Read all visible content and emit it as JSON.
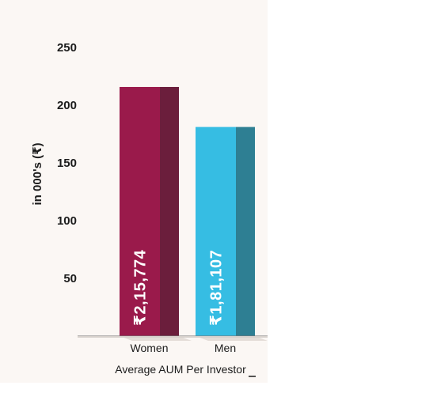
{
  "chart_data": {
    "type": "bar",
    "categories": [
      "Women",
      "Men"
    ],
    "values": [
      215.774,
      181.107
    ],
    "data_labels": [
      "₹2,15,774",
      "₹1,81,107"
    ],
    "ylabel": "in 000's (₹)",
    "xlabel": "Average AUM Per Investor",
    "yticks": [
      "50",
      "100",
      "150",
      "200",
      "250"
    ],
    "ylim": [
      0,
      250
    ],
    "grid": false,
    "legend": "none",
    "colors": {
      "women_front": "#9a1a4b",
      "women_side": "#6b1e3c",
      "men_front": "#36bde3",
      "men_side": "#2e7f93",
      "panel": "#fbf7f4"
    }
  }
}
